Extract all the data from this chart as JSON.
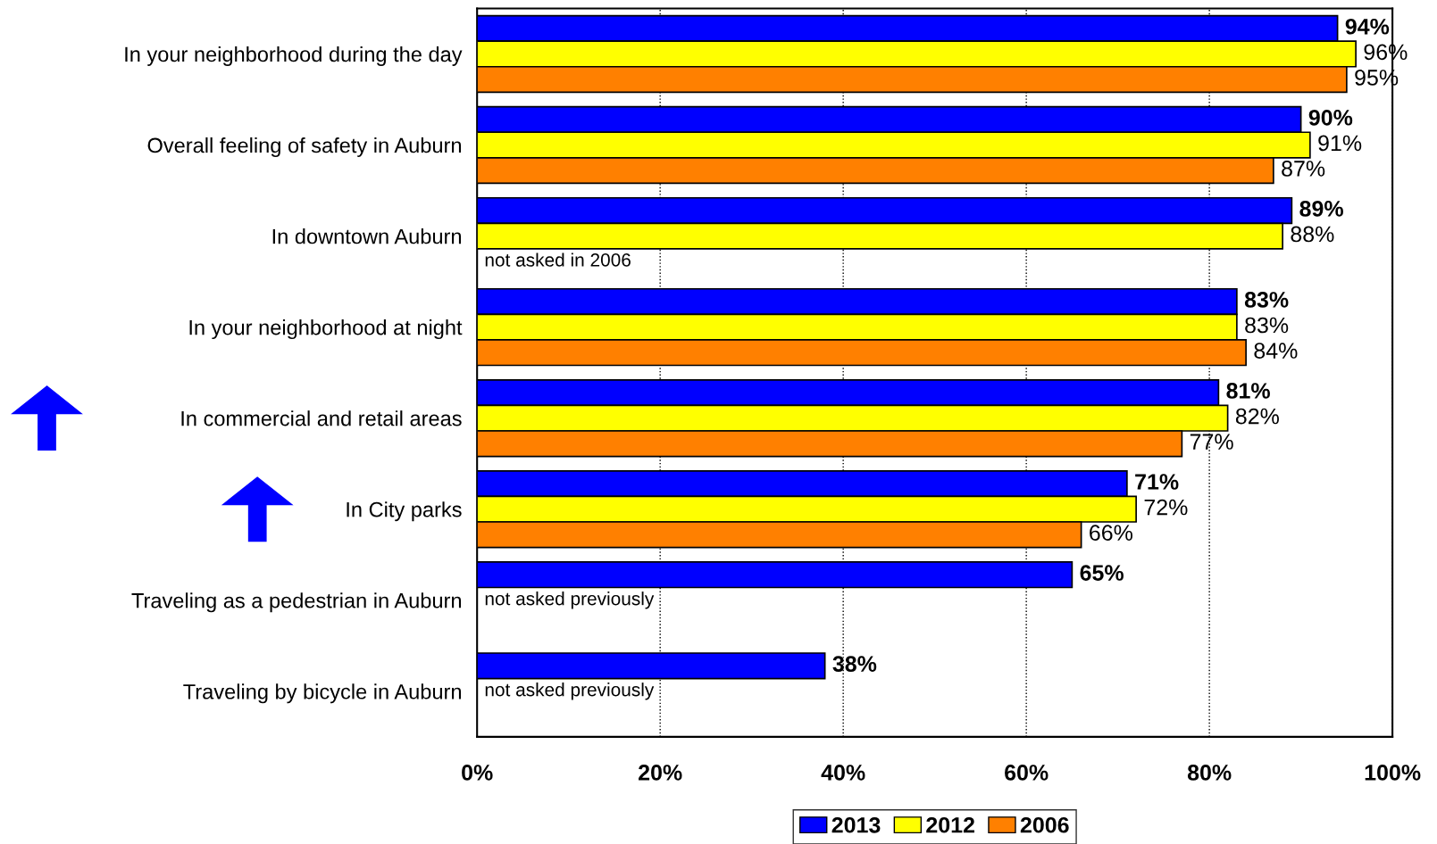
{
  "chart_data": {
    "type": "bar",
    "orientation": "horizontal",
    "categories": [
      "In your neighborhood during the day",
      "Overall feeling of safety in Auburn",
      "In downtown Auburn",
      "In your neighborhood at night",
      "In commercial and retail areas",
      "In City parks",
      "Traveling as a pedestrian in Auburn",
      "Traveling by bicycle in Auburn"
    ],
    "series": [
      {
        "name": "2013",
        "color": "#0000ff",
        "values": [
          94,
          90,
          89,
          83,
          81,
          71,
          65,
          38
        ],
        "value_labels": [
          "94%",
          "90%",
          "89%",
          "83%",
          "81%",
          "71%",
          "65%",
          "38%"
        ]
      },
      {
        "name": "2012",
        "color": "#ffff00",
        "values": [
          96,
          91,
          88,
          83,
          82,
          72,
          null,
          null
        ],
        "value_labels": [
          "96%",
          "91%",
          "88%",
          "83%",
          "82%",
          "72%",
          null,
          null
        ]
      },
      {
        "name": "2006",
        "color": "#ff8000",
        "values": [
          95,
          87,
          null,
          84,
          77,
          66,
          null,
          null
        ],
        "value_labels": [
          "95%",
          "87%",
          null,
          "84%",
          "77%",
          "66%",
          null,
          null
        ]
      }
    ],
    "xlim": [
      0,
      100
    ],
    "xticks": [
      {
        "value": 0,
        "label": "0%"
      },
      {
        "value": 20,
        "label": "20%"
      },
      {
        "value": 40,
        "label": "40%"
      },
      {
        "value": 60,
        "label": "60%"
      },
      {
        "value": 80,
        "label": "80%"
      },
      {
        "value": 100,
        "label": "100%"
      }
    ],
    "grid": "x",
    "legend": "bottom",
    "annotations": [
      "not asked in 2006",
      "not asked previously",
      "not asked previously"
    ]
  }
}
